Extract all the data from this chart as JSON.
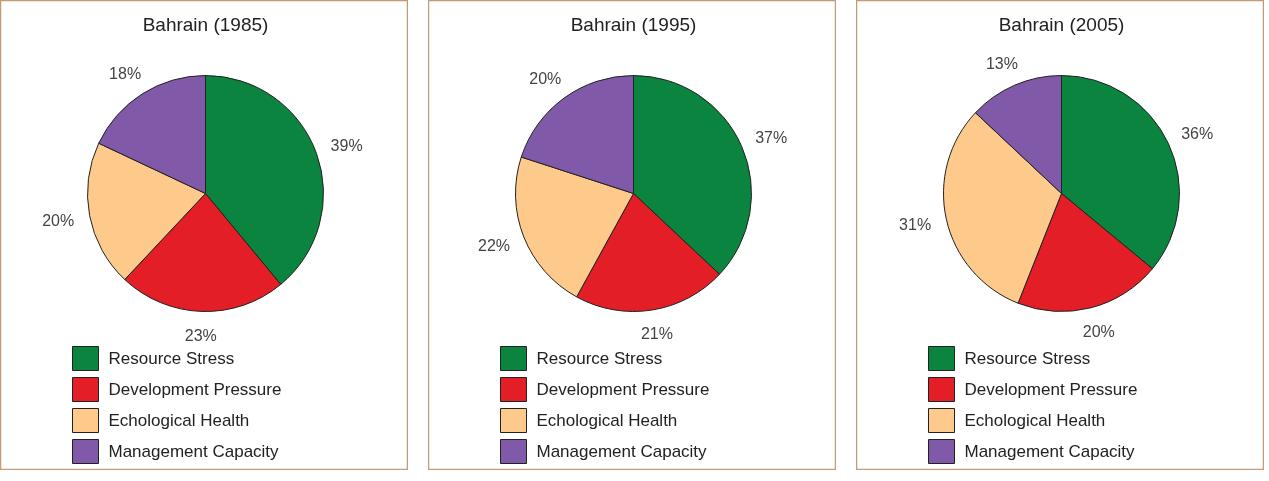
{
  "chart_data": [
    {
      "type": "pie",
      "title": "Bahrain (1985)",
      "categories": [
        "Resource Stress",
        "Development Pressure",
        "Echological Health",
        "Management Capacity"
      ],
      "values": [
        39,
        23,
        20,
        18
      ],
      "value_labels": [
        "39%",
        "23%",
        "20%",
        "18%"
      ],
      "colors": [
        "#0a843f",
        "#e31e26",
        "#fdca8c",
        "#8059a8"
      ],
      "legend": "bottom"
    },
    {
      "type": "pie",
      "title": "Bahrain (1995)",
      "categories": [
        "Resource Stress",
        "Development Pressure",
        "Echological Health",
        "Management Capacity"
      ],
      "values": [
        37,
        21,
        22,
        20
      ],
      "value_labels": [
        "37%",
        "21%",
        "22%",
        "20%"
      ],
      "colors": [
        "#0a843f",
        "#e31e26",
        "#fdca8c",
        "#8059a8"
      ],
      "legend": "bottom"
    },
    {
      "type": "pie",
      "title": "Bahrain (2005)",
      "categories": [
        "Resource Stress",
        "Development Pressure",
        "Echological Health",
        "Management Capacity"
      ],
      "values": [
        36,
        20,
        31,
        13
      ],
      "value_labels": [
        "36%",
        "20%",
        "31%",
        "13%"
      ],
      "colors": [
        "#0a843f",
        "#e31e26",
        "#fdca8c",
        "#8059a8"
      ],
      "legend": "bottom"
    }
  ]
}
